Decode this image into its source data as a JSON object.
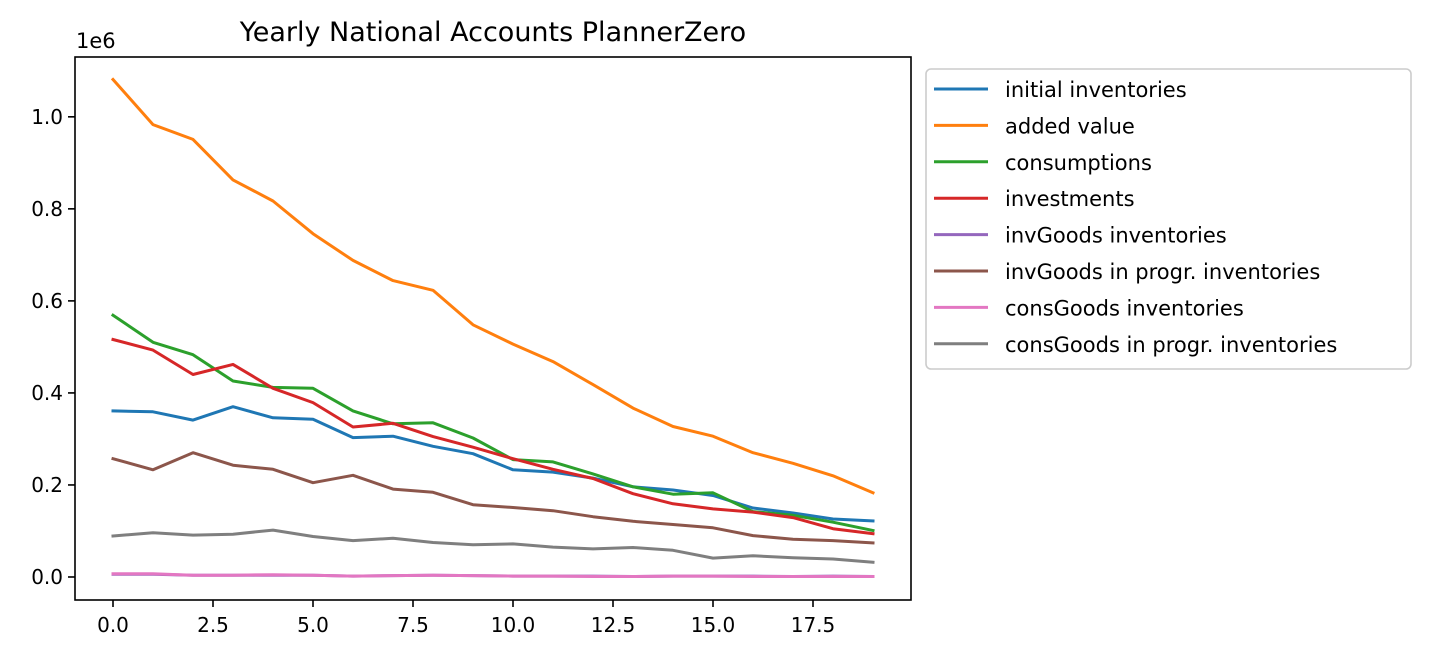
{
  "chart_data": {
    "type": "line",
    "title": "Yearly National Accounts PlannerZero",
    "xlabel": "",
    "ylabel": "",
    "y_offset_text": "1e6",
    "xlim": [
      -0.95,
      19.95
    ],
    "ylim": [
      -0.05,
      1.13
    ],
    "x_ticks": [
      {
        "value": 0.0,
        "label": "0.0"
      },
      {
        "value": 2.5,
        "label": "2.5"
      },
      {
        "value": 5.0,
        "label": "5.0"
      },
      {
        "value": 7.5,
        "label": "7.5"
      },
      {
        "value": 10.0,
        "label": "10.0"
      },
      {
        "value": 12.5,
        "label": "12.5"
      },
      {
        "value": 15.0,
        "label": "15.0"
      },
      {
        "value": 17.5,
        "label": "17.5"
      }
    ],
    "y_ticks": [
      {
        "value": 0.0,
        "label": "0.0"
      },
      {
        "value": 0.2,
        "label": "0.2"
      },
      {
        "value": 0.4,
        "label": "0.4"
      },
      {
        "value": 0.6,
        "label": "0.6"
      },
      {
        "value": 0.8,
        "label": "0.8"
      },
      {
        "value": 1.0,
        "label": "1.0"
      }
    ],
    "grid": false,
    "legend_position": "outside-right",
    "x": [
      0,
      1,
      2,
      3,
      4,
      5,
      6,
      7,
      8,
      9,
      10,
      11,
      12,
      13,
      14,
      15,
      16,
      17,
      18,
      19
    ],
    "series": [
      {
        "name": "initial inventories",
        "color": "#1f77b4",
        "values": [
          0.361,
          0.359,
          0.341,
          0.37,
          0.346,
          0.343,
          0.303,
          0.306,
          0.284,
          0.268,
          0.233,
          0.228,
          0.215,
          0.196,
          0.189,
          0.177,
          0.15,
          0.139,
          0.126,
          0.122
        ]
      },
      {
        "name": "added value",
        "color": "#ff7f0e",
        "values": [
          1.081,
          0.983,
          0.951,
          0.863,
          0.817,
          0.746,
          0.688,
          0.644,
          0.623,
          0.548,
          0.506,
          0.468,
          0.418,
          0.367,
          0.327,
          0.306,
          0.27,
          0.247,
          0.22,
          0.183
        ]
      },
      {
        "name": "consumptions",
        "color": "#2ca02c",
        "values": [
          0.569,
          0.51,
          0.483,
          0.426,
          0.412,
          0.41,
          0.361,
          0.333,
          0.335,
          0.302,
          0.255,
          0.25,
          0.224,
          0.196,
          0.18,
          0.183,
          0.142,
          0.134,
          0.119,
          0.101
        ]
      },
      {
        "name": "investments",
        "color": "#d62728",
        "values": [
          0.516,
          0.493,
          0.44,
          0.462,
          0.41,
          0.379,
          0.326,
          0.334,
          0.305,
          0.282,
          0.257,
          0.234,
          0.214,
          0.181,
          0.159,
          0.148,
          0.141,
          0.129,
          0.105,
          0.094
        ]
      },
      {
        "name": "invGoods inventories",
        "color": "#9467bd",
        "values": [
          0.006,
          0.006,
          0.004,
          0.004,
          0.004,
          0.004,
          0.002,
          0.003,
          0.004,
          0.003,
          0.002,
          0.002,
          0.002,
          0.001,
          0.002,
          0.002,
          0.002,
          0.001,
          0.002,
          0.001
        ]
      },
      {
        "name": "invGoods in progr. inventories",
        "color": "#8c564b",
        "values": [
          0.257,
          0.233,
          0.27,
          0.243,
          0.234,
          0.205,
          0.221,
          0.191,
          0.184,
          0.157,
          0.151,
          0.144,
          0.131,
          0.121,
          0.114,
          0.107,
          0.09,
          0.082,
          0.079,
          0.074
        ]
      },
      {
        "name": "consGoods inventories",
        "color": "#e377c2",
        "values": [
          0.007,
          0.007,
          0.004,
          0.004,
          0.005,
          0.004,
          0.002,
          0.003,
          0.004,
          0.003,
          0.002,
          0.002,
          0.001,
          0.001,
          0.002,
          0.002,
          0.001,
          0.001,
          0.001,
          0.001
        ]
      },
      {
        "name": "consGoods in progr. inventories",
        "color": "#7f7f7f",
        "values": [
          0.089,
          0.096,
          0.091,
          0.093,
          0.102,
          0.088,
          0.079,
          0.084,
          0.075,
          0.07,
          0.072,
          0.065,
          0.061,
          0.064,
          0.058,
          0.041,
          0.046,
          0.042,
          0.039,
          0.032
        ]
      }
    ]
  }
}
